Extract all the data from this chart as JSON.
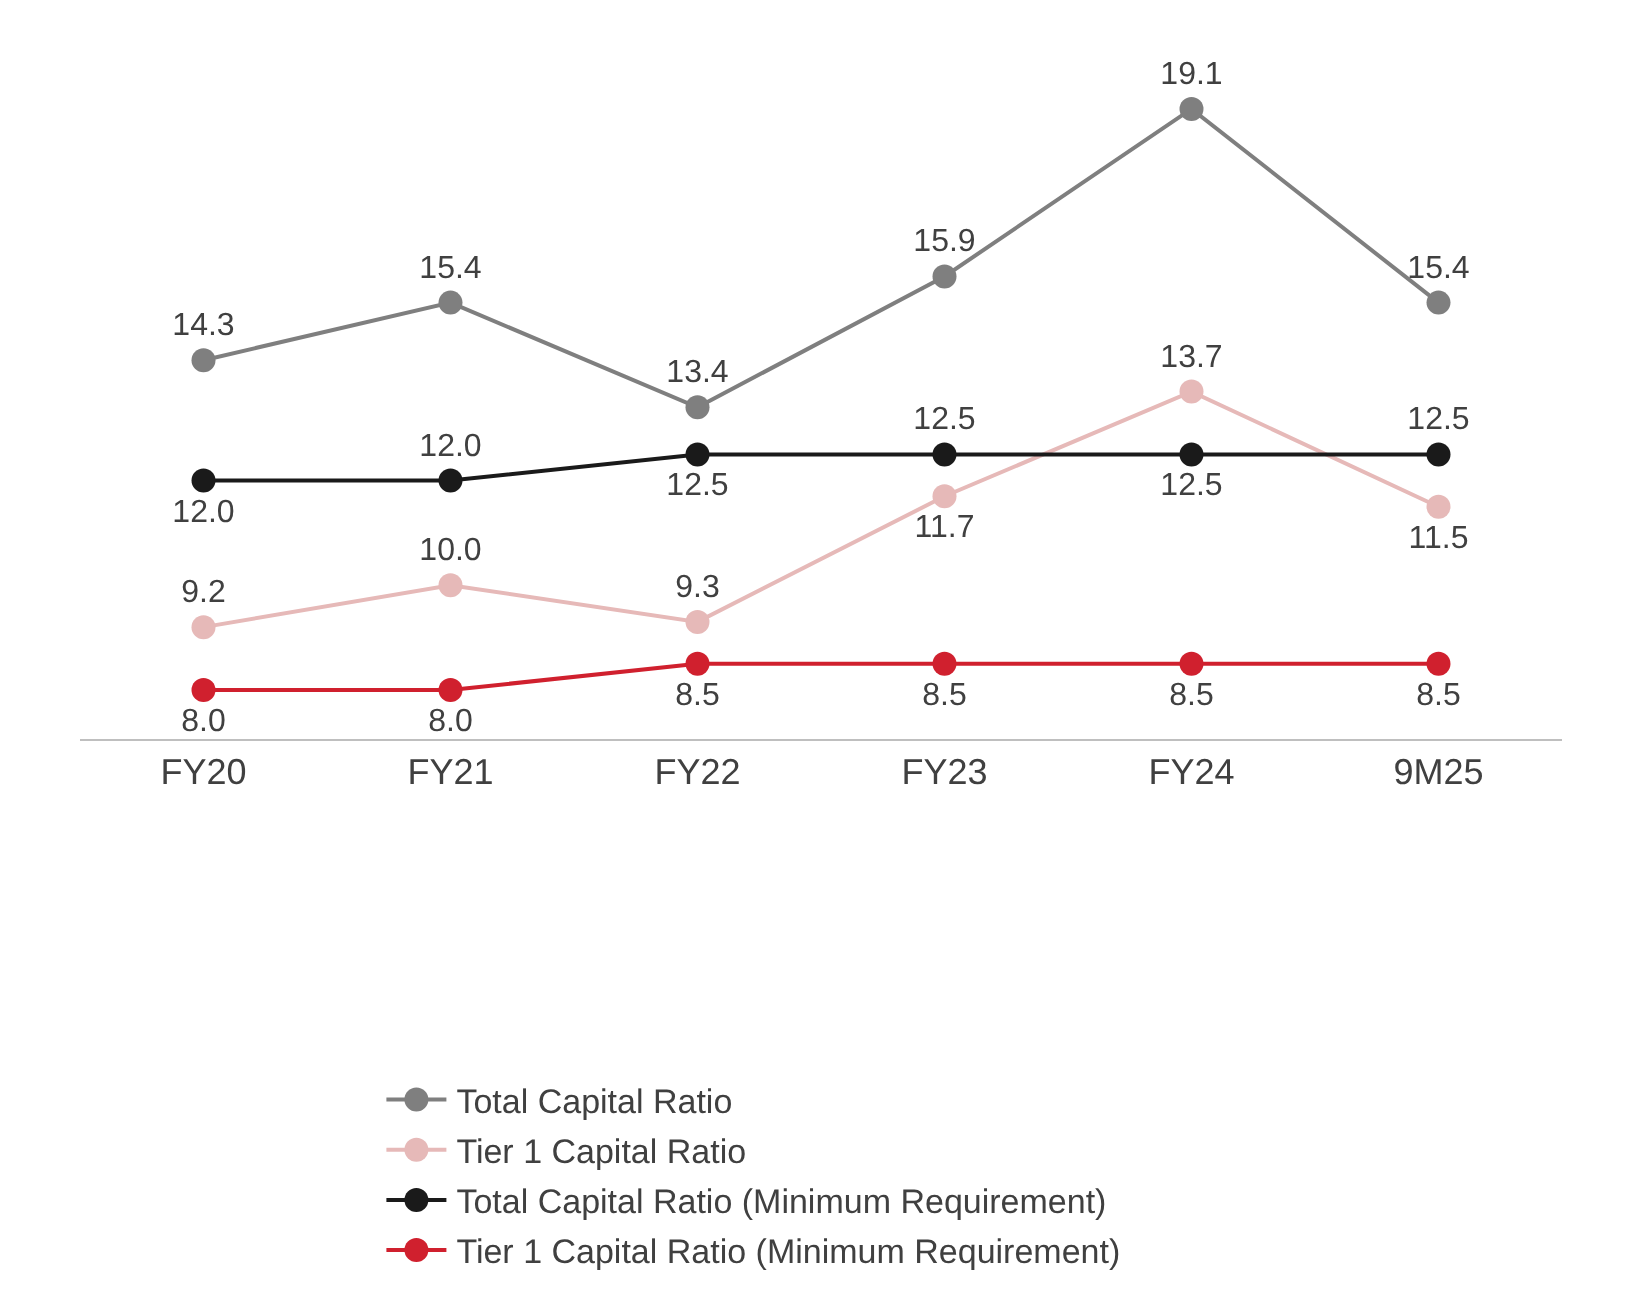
{
  "chart_data": {
    "type": "line",
    "categories": [
      "FY20",
      "FY21",
      "FY22",
      "FY23",
      "FY24",
      "9M25"
    ],
    "series": [
      {
        "name": "Total Capital Ratio",
        "color": "#7f7f7f",
        "values": [
          14.3,
          15.4,
          13.4,
          15.9,
          19.1,
          15.4
        ],
        "value_labels": [
          "14.3",
          "15.4",
          "13.4",
          "15.9",
          "19.1",
          "15.4"
        ]
      },
      {
        "name": "Tier 1 Capital Ratio",
        "color": "#e6b9b8",
        "values": [
          9.2,
          10.0,
          9.3,
          11.7,
          13.7,
          11.5
        ],
        "value_labels": [
          "9.2",
          "10.0",
          "9.3",
          "11.7",
          "13.7",
          "11.5"
        ]
      },
      {
        "name": "Total Capital Ratio (Minimum Requirement)",
        "color": "#1a1a1a",
        "values": [
          12.0,
          12.0,
          12.5,
          12.5,
          12.5,
          12.5
        ],
        "value_labels": [
          "12.0",
          "12.0",
          "12.5",
          "12.5",
          "12.5",
          "12.5"
        ]
      },
      {
        "name": "Tier 1 Capital Ratio (Minimum Requirement)",
        "color": "#d0202e",
        "values": [
          8.0,
          8.0,
          8.5,
          8.5,
          8.5,
          8.5
        ],
        "value_labels": [
          "8.0",
          "8.0",
          "8.5",
          "8.5",
          "8.5",
          "8.5"
        ]
      }
    ],
    "marker": "circle",
    "line_style": "solid",
    "legend": "bottom",
    "tick_labels": "x"
  }
}
